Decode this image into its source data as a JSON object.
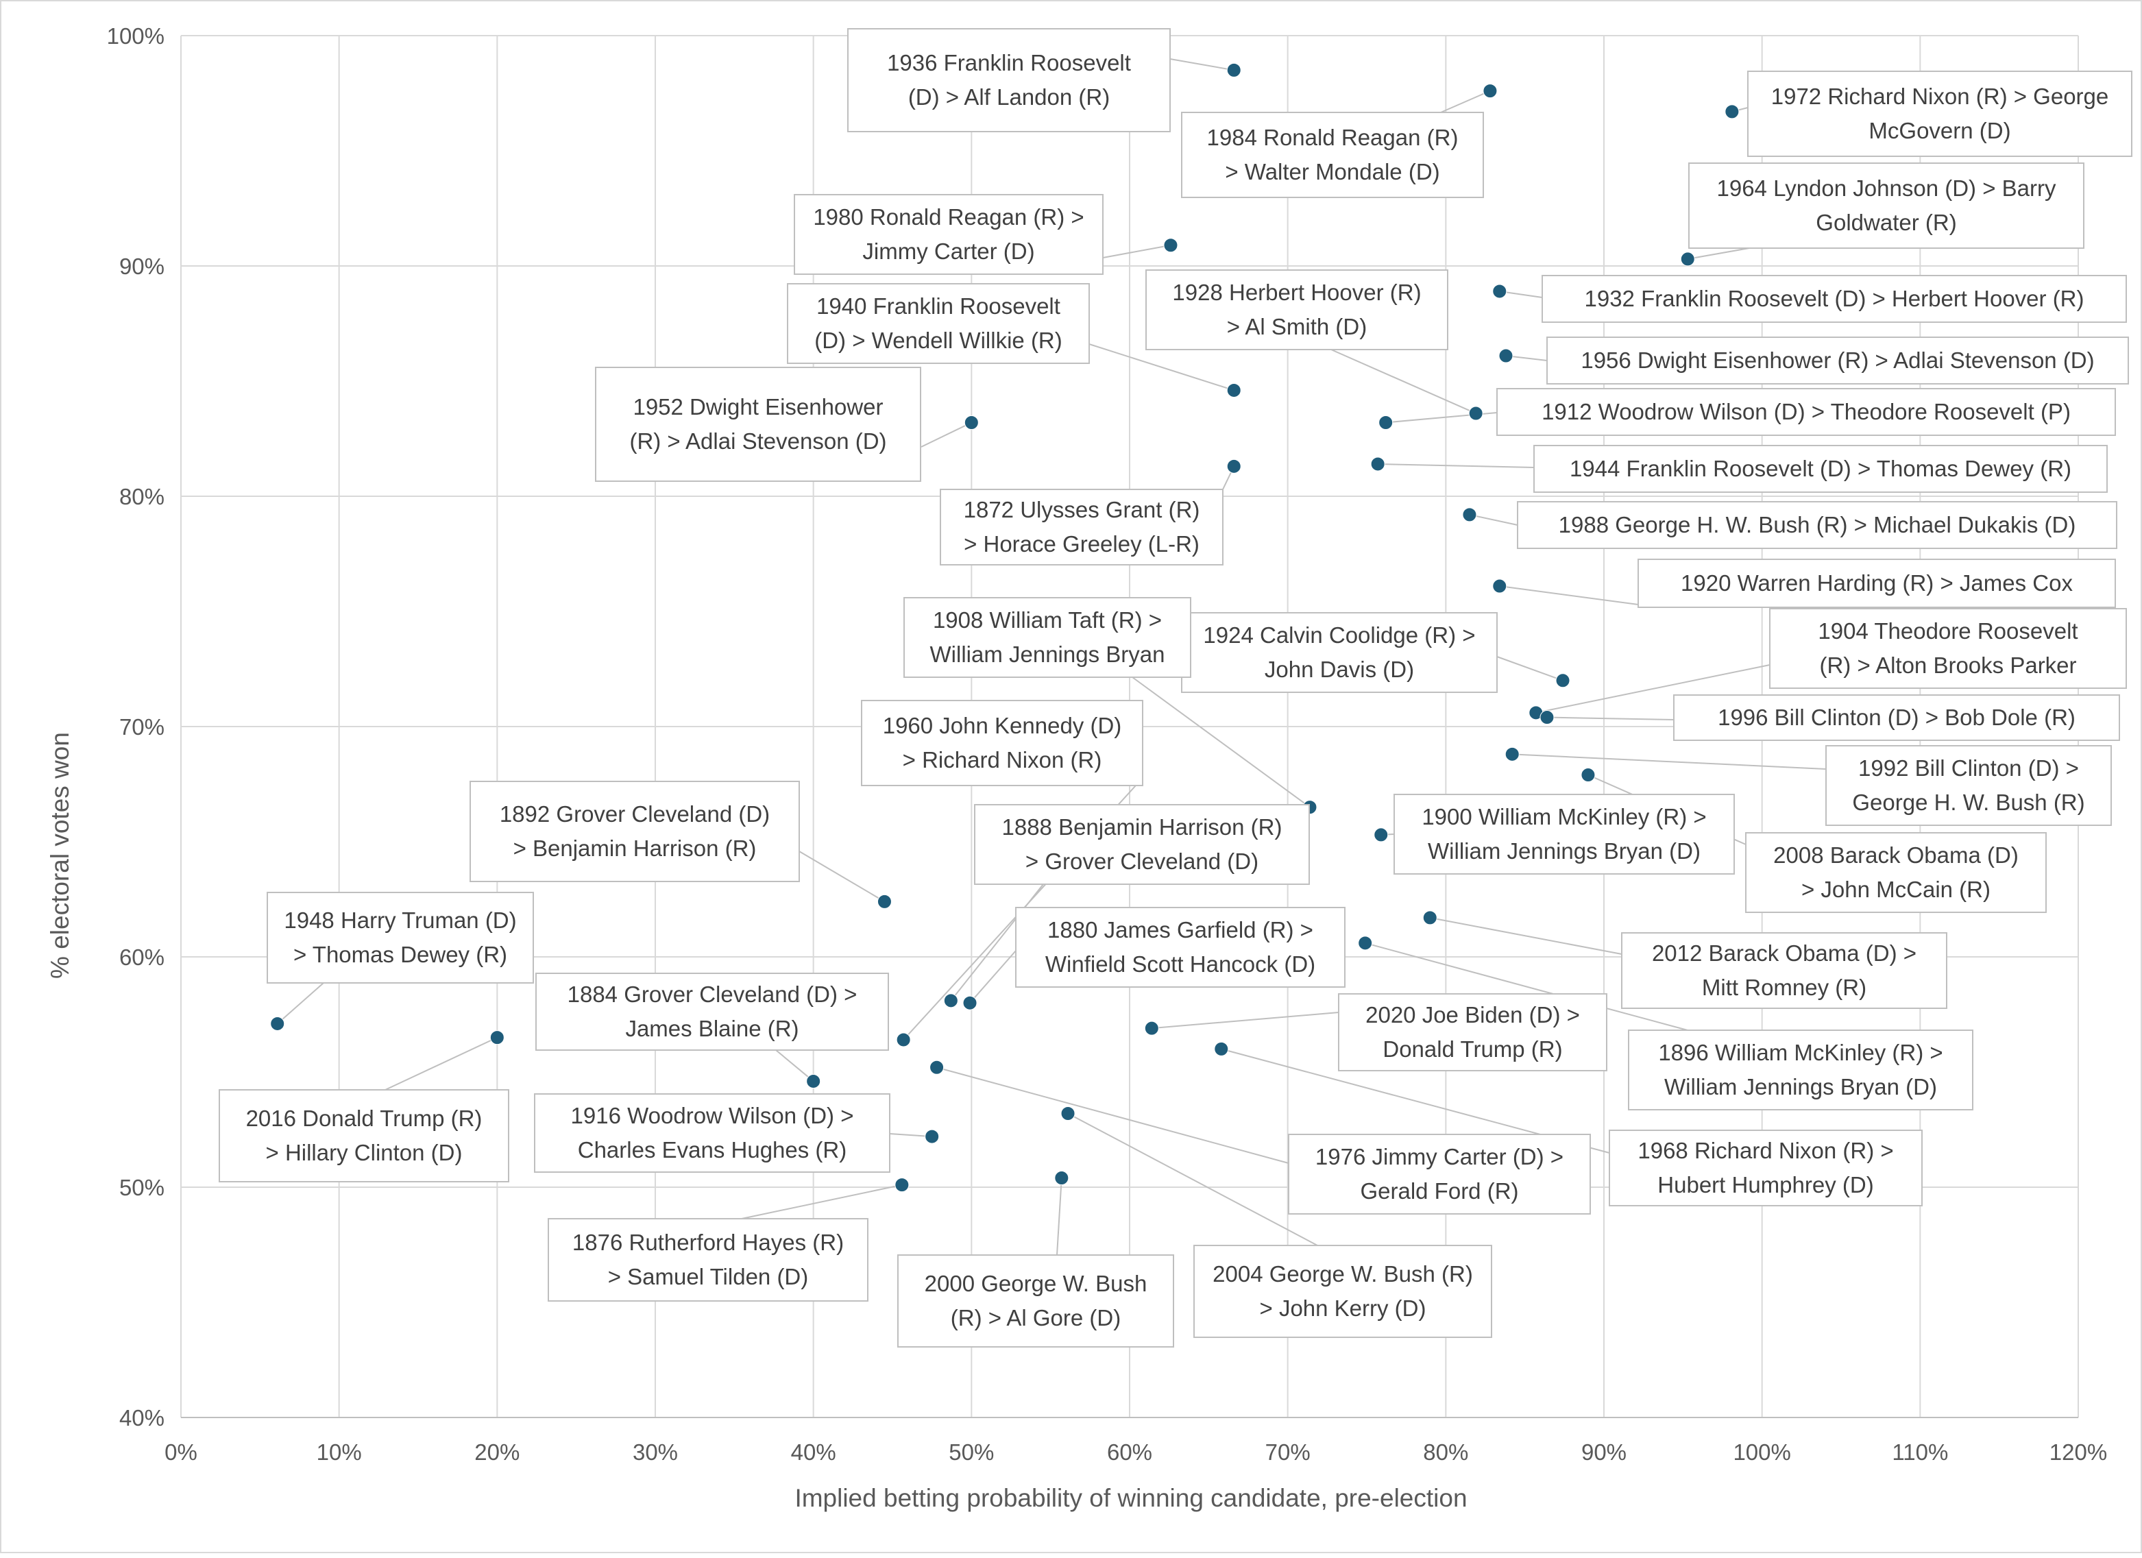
{
  "chart_data": {
    "type": "scatter",
    "title": "",
    "xlabel": "Implied betting probability of winning candidate, pre-election",
    "ylabel": "% electoral votes won",
    "xlim": [
      0,
      120
    ],
    "ylim": [
      40,
      100
    ],
    "x_ticks": [
      "0%",
      "10%",
      "20%",
      "30%",
      "40%",
      "50%",
      "60%",
      "70%",
      "80%",
      "90%",
      "100%",
      "110%",
      "120%"
    ],
    "y_ticks": [
      "40%",
      "50%",
      "60%",
      "70%",
      "80%",
      "90%",
      "100%"
    ],
    "grid": true,
    "legend": "none",
    "marker_color": "#1f5c7a",
    "points": [
      {
        "x": 66.6,
        "y": 98.5,
        "label": [
          "1936 Franklin Roosevelt",
          "(D) > Alf Landon (R)"
        ]
      },
      {
        "x": 82.8,
        "y": 97.6,
        "label": [
          "1984 Ronald Reagan (R)",
          "> Walter Mondale (D)"
        ]
      },
      {
        "x": 98.1,
        "y": 96.7,
        "label": [
          "1972 Richard Nixon (R) > George",
          "McGovern (D)"
        ]
      },
      {
        "x": 95.3,
        "y": 90.3,
        "label": [
          "1964 Lyndon Johnson (D) > Barry",
          "Goldwater (R)"
        ]
      },
      {
        "x": 62.6,
        "y": 90.9,
        "label": [
          "1980 Ronald Reagan (R) >",
          "Jimmy Carter (D)"
        ]
      },
      {
        "x": 83.4,
        "y": 88.9,
        "label": [
          "1932 Franklin Roosevelt (D) > Herbert Hoover (R)"
        ]
      },
      {
        "x": 66.6,
        "y": 84.6,
        "label": [
          "1940 Franklin Roosevelt",
          "(D) > Wendell Willkie (R)"
        ]
      },
      {
        "x": 81.9,
        "y": 83.6,
        "label": [
          "1928 Herbert Hoover (R)",
          "> Al Smith (D)"
        ]
      },
      {
        "x": 83.8,
        "y": 86.1,
        "label": [
          "1956 Dwight Eisenhower (R) > Adlai Stevenson (D)"
        ]
      },
      {
        "x": 50.0,
        "y": 83.2,
        "label": [
          "1952 Dwight Eisenhower",
          "(R) > Adlai Stevenson (D)"
        ]
      },
      {
        "x": 76.2,
        "y": 83.2,
        "label": [
          "1912 Woodrow Wilson (D) > Theodore Roosevelt (P)"
        ]
      },
      {
        "x": 66.6,
        "y": 81.3,
        "label": [
          "1872 Ulysses Grant (R)",
          "> Horace Greeley (L-R)"
        ]
      },
      {
        "x": 75.7,
        "y": 81.4,
        "label": [
          "1944 Franklin Roosevelt (D) > Thomas Dewey (R)"
        ]
      },
      {
        "x": 81.5,
        "y": 79.2,
        "label": [
          "1988 George H. W. Bush (R) > Michael Dukakis (D)"
        ]
      },
      {
        "x": 83.4,
        "y": 76.1,
        "label": [
          "1920 Warren Harding (R) > James Cox"
        ]
      },
      {
        "x": 87.4,
        "y": 72.0,
        "label": [
          "1924 Calvin Coolidge (R) >",
          "John Davis (D)"
        ]
      },
      {
        "x": 85.7,
        "y": 70.6,
        "label": [
          "1904 Theodore Roosevelt",
          "(R) > Alton Brooks Parker"
        ]
      },
      {
        "x": 86.4,
        "y": 70.4,
        "label": [
          "1996 Bill Clinton (D) > Bob Dole (R)"
        ]
      },
      {
        "x": 84.2,
        "y": 68.8,
        "label": [
          "1992 Bill Clinton (D) >",
          "George H. W. Bush (R)"
        ]
      },
      {
        "x": 71.4,
        "y": 66.5,
        "label": [
          "1908 William Taft (R) >",
          "William Jennings Bryan"
        ]
      },
      {
        "x": 75.9,
        "y": 65.3,
        "label": [
          "1900 William McKinley (R) >",
          "William Jennings Bryan (D)"
        ]
      },
      {
        "x": 89.0,
        "y": 67.9,
        "label": [
          "2008 Barack Obama (D)",
          "> John McCain (R)"
        ]
      },
      {
        "x": 44.5,
        "y": 62.4,
        "label": [
          "1892 Grover Cleveland (D)",
          "> Benjamin Harrison (R)"
        ]
      },
      {
        "x": 79.0,
        "y": 61.7,
        "label": [
          "2012 Barack Obama (D) >",
          "Mitt Romney (R)"
        ]
      },
      {
        "x": 74.9,
        "y": 60.6,
        "label": [
          "1896 William McKinley (R) >",
          "William Jennings Bryan (D)"
        ]
      },
      {
        "x": 48.7,
        "y": 58.1,
        "label": [
          "1888 Benjamin Harrison (R)",
          "> Grover Cleveland (D)"
        ]
      },
      {
        "x": 49.9,
        "y": 58.0,
        "label": [
          "1880 James Garfield (R) >",
          "Winfield Scott Hancock (D)"
        ]
      },
      {
        "x": 6.1,
        "y": 57.1,
        "label": [
          "1948 Harry Truman (D)",
          "> Thomas Dewey (R)"
        ]
      },
      {
        "x": 45.7,
        "y": 56.4,
        "label": [
          "1960 John Kennedy (D)",
          "> Richard Nixon (R)"
        ]
      },
      {
        "x": 20.0,
        "y": 56.5,
        "label": [
          "2016 Donald Trump (R)",
          "> Hillary Clinton (D)"
        ]
      },
      {
        "x": 61.4,
        "y": 56.9,
        "label": [
          "2020 Joe Biden (D) >",
          "Donald Trump (R)"
        ]
      },
      {
        "x": 65.8,
        "y": 56.0,
        "label": [
          "1968 Richard Nixon (R) >",
          "Hubert Humphrey (D)"
        ]
      },
      {
        "x": 47.8,
        "y": 55.2,
        "label": [
          "1976 Jimmy Carter (D) >",
          "Gerald Ford (R)"
        ]
      },
      {
        "x": 40.0,
        "y": 54.6,
        "label": [
          "1884 Grover Cleveland (D) >",
          "James Blaine (R)"
        ]
      },
      {
        "x": 56.1,
        "y": 53.2,
        "label": [
          "2004 George W. Bush (R)",
          "> John Kerry (D)"
        ]
      },
      {
        "x": 47.5,
        "y": 52.2,
        "label": [
          "1916 Woodrow Wilson (D) >",
          "Charles Evans Hughes (R)"
        ]
      },
      {
        "x": 45.6,
        "y": 50.1,
        "label": [
          "1876 Rutherford Hayes (R)",
          "> Samuel Tilden (D)"
        ]
      },
      {
        "x": 55.7,
        "y": 50.4,
        "label": [
          "2000 George W. Bush",
          "(R) > Al Gore (D)"
        ]
      }
    ]
  }
}
